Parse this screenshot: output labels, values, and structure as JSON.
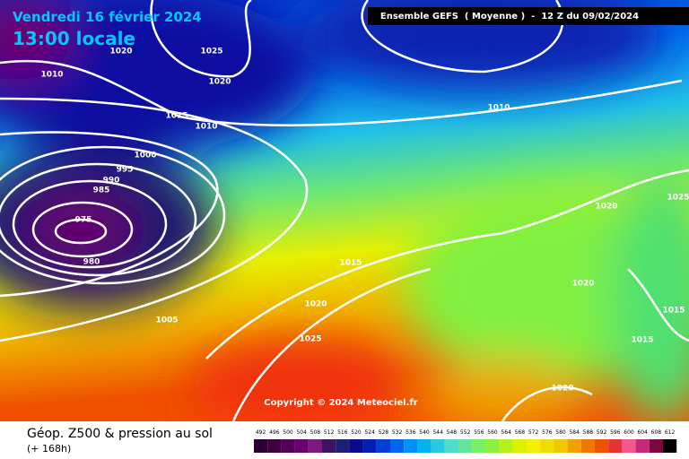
{
  "header": {
    "date": "Vendredi 16 février 2024",
    "time": "13:00 locale",
    "model": "Ensemble GEFS  ( Moyenne )  -  12 Z du 09/02/2024"
  },
  "copyright": "Copyright © 2024 Meteociel.fr",
  "footer": {
    "title": "Géop. Z500 & pression au sol",
    "lead": "(+ 168h)"
  },
  "isobar_labels": [
    1020,
    1025,
    1010,
    1020,
    1015,
    1010,
    1010,
    1000,
    995,
    990,
    985,
    975,
    980,
    1020,
    1025,
    1015,
    1020,
    1020,
    1015,
    1005,
    1025,
    1015,
    1020
  ],
  "legend": {
    "labels": [
      492,
      496,
      500,
      504,
      508,
      512,
      516,
      520,
      524,
      528,
      532,
      536,
      540,
      544,
      548,
      552,
      556,
      560,
      564,
      568,
      572,
      576,
      580,
      584,
      588,
      592,
      596,
      600,
      604,
      608,
      612
    ],
    "colors": [
      "#2b0030",
      "#40003f",
      "#55005a",
      "#6a0070",
      "#7a1a80",
      "#3c1464",
      "#1e1e78",
      "#0a0a8c",
      "#0020b4",
      "#0040d8",
      "#0064f0",
      "#0090f8",
      "#00b4f0",
      "#28c8e0",
      "#50dcc8",
      "#64e696",
      "#78f064",
      "#8cf03c",
      "#b4f01e",
      "#dcf000",
      "#f0f000",
      "#f0dc00",
      "#f0c800",
      "#f0a000",
      "#f07800",
      "#f05000",
      "#e63232",
      "#f05a8c",
      "#c8287a",
      "#780a3c",
      "#000000"
    ]
  }
}
